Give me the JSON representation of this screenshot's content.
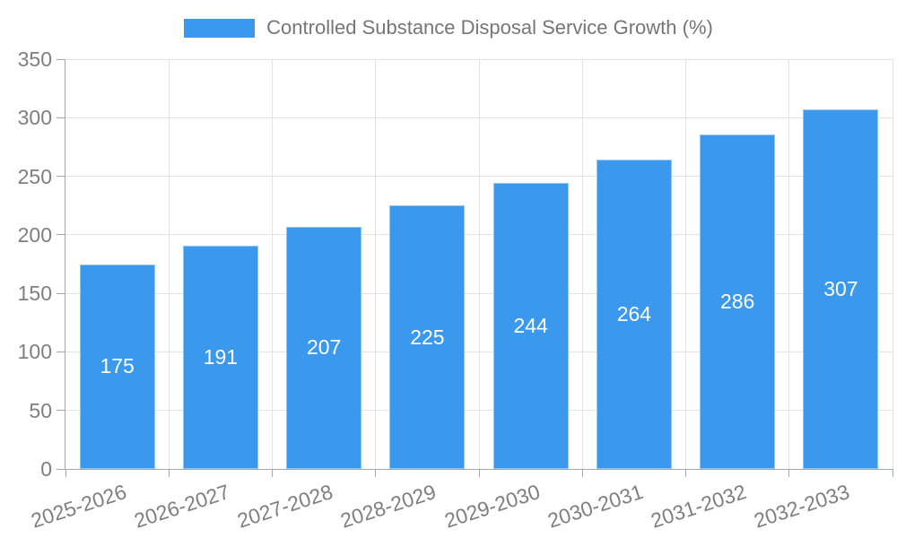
{
  "chart_data": {
    "type": "bar",
    "title": "Controlled Substance Disposal Service Growth (%)",
    "categories": [
      "2025-2026",
      "2026-2027",
      "2027-2028",
      "2028-2029",
      "2029-2030",
      "2030-2031",
      "2031-2032",
      "2032-2033"
    ],
    "values": [
      175,
      191,
      207,
      225,
      244,
      264,
      286,
      307
    ],
    "xlabel": "",
    "ylabel": "",
    "ylim": [
      0,
      350
    ],
    "ytick_step": 50,
    "grid": true,
    "legend_position": "top",
    "value_label_position": "inside-center",
    "colors": {
      "bar": "#3A99EC",
      "grid": "#E3E3E3",
      "axis": "#A6A6A6",
      "tick_label": "#7F7F7F",
      "title": "#767676",
      "value_label": "#FFFFFF"
    }
  }
}
